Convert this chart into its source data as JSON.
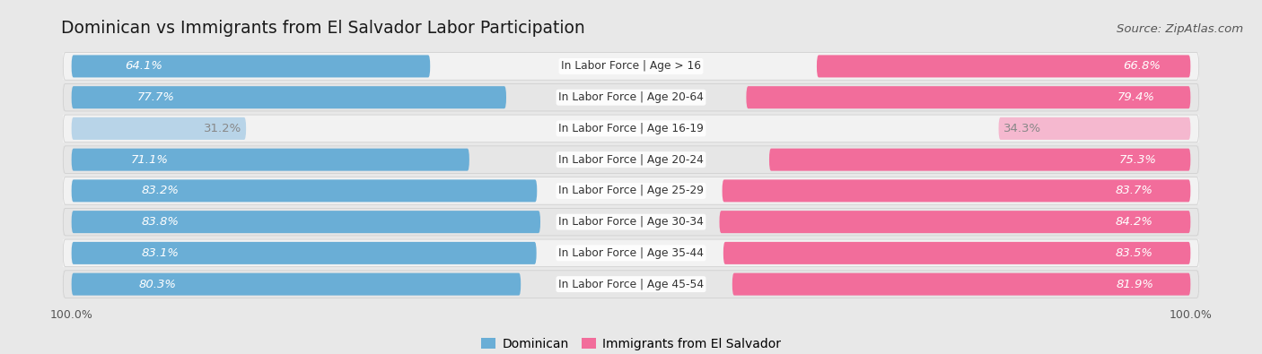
{
  "title": "Dominican vs Immigrants from El Salvador Labor Participation",
  "source": "Source: ZipAtlas.com",
  "categories": [
    "In Labor Force | Age > 16",
    "In Labor Force | Age 20-64",
    "In Labor Force | Age 16-19",
    "In Labor Force | Age 20-24",
    "In Labor Force | Age 25-29",
    "In Labor Force | Age 30-34",
    "In Labor Force | Age 35-44",
    "In Labor Force | Age 45-54"
  ],
  "dominican_values": [
    64.1,
    77.7,
    31.2,
    71.1,
    83.2,
    83.8,
    83.1,
    80.3
  ],
  "elsalvador_values": [
    66.8,
    79.4,
    34.3,
    75.3,
    83.7,
    84.2,
    83.5,
    81.9
  ],
  "dominican_color": "#6aaed6",
  "dominican_color_light": "#b8d4e8",
  "elsalvador_color": "#f26d9b",
  "elsalvador_color_light": "#f5b8cf",
  "bar_height": 0.72,
  "max_value": 100.0,
  "background_color": "#e8e8e8",
  "row_bg_even": "#f0f0f0",
  "row_bg_odd": "#e0e0e0",
  "label_fontsize": 9.5,
  "title_fontsize": 13.5,
  "source_fontsize": 9.5,
  "legend_fontsize": 10,
  "tick_fontsize": 9
}
